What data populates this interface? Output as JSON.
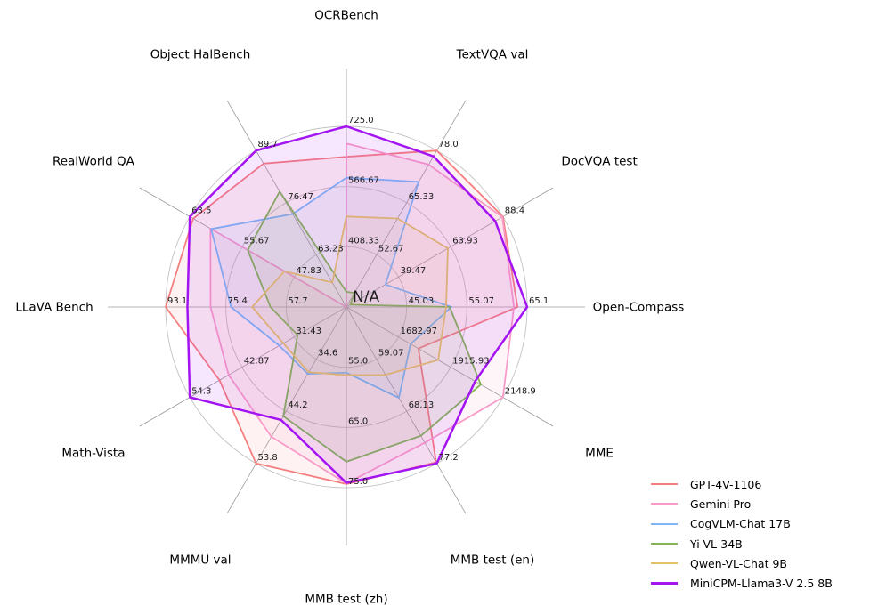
{
  "figure": {
    "background": "#ffffff",
    "grid_color": "#c2c2c2",
    "spoke_color": "#9b9b9b",
    "text_color": "#1a1a1a"
  },
  "chart_data": {
    "type": "radar",
    "title": "",
    "legend_position": "lower right",
    "grid": true,
    "rings": 3,
    "fill_opacity": 0.1,
    "center_label": "N/A",
    "axes": [
      {
        "label": "OCRBench",
        "min": 250,
        "max": 725,
        "ticks": [
          "408.33",
          "566.67",
          "725.0"
        ]
      },
      {
        "label": "TextVQA val",
        "min": 40,
        "max": 78,
        "ticks": [
          "52.67",
          "65.33",
          "78.0"
        ]
      },
      {
        "label": "DocVQA test",
        "min": 15,
        "max": 88.4,
        "ticks": [
          "39.47",
          "63.93",
          "88.4"
        ]
      },
      {
        "label": "Open-Compass",
        "min": 35,
        "max": 65.1,
        "ticks": [
          "45.03",
          "55.07",
          "65.1"
        ]
      },
      {
        "label": "MME",
        "min": 1450,
        "max": 2148.9,
        "ticks": [
          "1682.97",
          "1915.93",
          "2148.9"
        ]
      },
      {
        "label": "MMB test (en)",
        "min": 50,
        "max": 77.2,
        "ticks": [
          "59.07",
          "68.13",
          "77.2"
        ]
      },
      {
        "label": "MMB test (zh)",
        "min": 45,
        "max": 75,
        "ticks": [
          "55.0",
          "65.0",
          "75.0"
        ]
      },
      {
        "label": "MMMU val",
        "min": 25,
        "max": 53.8,
        "ticks": [
          "34.6",
          "44.2",
          "53.8"
        ]
      },
      {
        "label": "Math-Vista",
        "min": 20,
        "max": 54.3,
        "ticks": [
          "31.43",
          "42.87",
          "54.3"
        ]
      },
      {
        "label": "LLaVA Bench",
        "min": 40,
        "max": 93.1,
        "ticks": [
          "57.7",
          "75.4",
          "93.1"
        ]
      },
      {
        "label": "RealWorld QA",
        "min": 40,
        "max": 63.5,
        "ticks": [
          "47.83",
          "55.67",
          "63.5"
        ]
      },
      {
        "label": "Object HalBench",
        "min": 50,
        "max": 89.7,
        "ticks": [
          "63.23",
          "76.47",
          "89.7"
        ]
      }
    ],
    "series": [
      {
        "name": "GPT-4V-1106",
        "color": "#f57f7f",
        "line_width": 1.8,
        "values": [
          645,
          78.0,
          88.4,
          63.5,
          1771.5,
          77.0,
          74.4,
          53.8,
          47.8,
          93.1,
          63.0,
          86.4
        ]
      },
      {
        "name": "Gemini Pro",
        "color": "#f99bc8",
        "line_width": 1.8,
        "values": [
          680,
          74.6,
          88.1,
          62.9,
          2148.9,
          73.6,
          74.3,
          48.9,
          45.8,
          79.9,
          60.4,
          null
        ]
      },
      {
        "name": "CogVLM-Chat 17B",
        "color": "#7eb7f2",
        "line_width": 1.8,
        "values": [
          590,
          70.4,
          33.3,
          52.5,
          1736.6,
          65.8,
          55.9,
          37.3,
          34.7,
          73.9,
          60.3,
          73.6
        ]
      },
      {
        "name": "Yi-VL-34B",
        "color": "#84b457",
        "line_width": 1.8,
        "values": [
          290,
          43.4,
          16.9,
          52.2,
          2050.2,
          72.4,
          70.7,
          45.1,
          30.7,
          62.3,
          54.8,
          79.3
        ]
      },
      {
        "name": "Qwen-VL-Chat 9B",
        "color": "#e3c169",
        "line_width": 1.8,
        "values": [
          488,
          61.5,
          62.6,
          51.6,
          1860.0,
          61.8,
          56.3,
          37.0,
          33.8,
          67.7,
          49.3,
          56.2
        ]
      },
      {
        "name": "MiniCPM-Llama3-V 2.5 8B",
        "color": "#a414f2",
        "line_width": 2.5,
        "values": [
          725,
          76.6,
          84.8,
          65.1,
          2024.6,
          77.2,
          74.2,
          45.8,
          54.3,
          86.7,
          63.5,
          89.7
        ]
      }
    ]
  }
}
